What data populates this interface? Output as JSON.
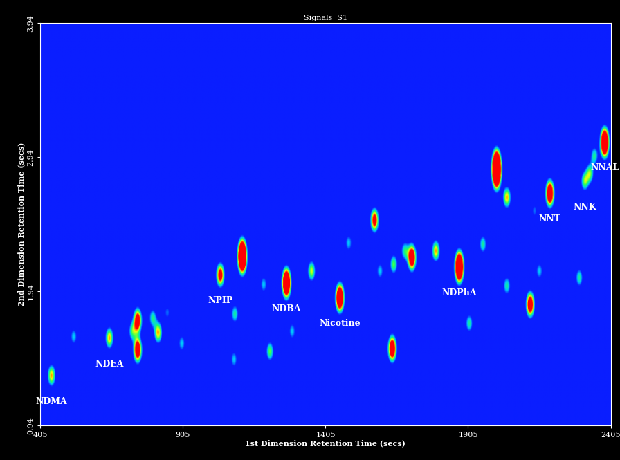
{
  "chart_data": {
    "type": "heatmap",
    "title": "Signals  S1",
    "x_label": "1st Dimension Retention Time (secs)",
    "y_label": "2nd Dimension Retention Time (secs)",
    "xlim": [
      405,
      2405
    ],
    "xticks": [
      405,
      905,
      1405,
      1905,
      2405
    ],
    "ylim": [
      0.94,
      3.94
    ],
    "yticks": [
      0.94,
      1.94,
      2.94,
      3.94
    ],
    "grid": false,
    "peaks": [
      {
        "x": 444,
        "y": 1.31,
        "intensity": 0.9,
        "name": "NDMA"
      },
      {
        "x": 522,
        "y": 1.6,
        "intensity": 0.5
      },
      {
        "x": 647,
        "y": 1.59,
        "intensity": 0.9,
        "name": "NDEA"
      },
      {
        "x": 727,
        "y": 1.64,
        "intensity": 0.6
      },
      {
        "x": 746,
        "y": 1.5,
        "intensity": 1.4
      },
      {
        "x": 746,
        "y": 1.72,
        "intensity": 1.3
      },
      {
        "x": 799,
        "y": 1.74,
        "intensity": 0.6
      },
      {
        "x": 818,
        "y": 1.63,
        "intensity": 0.9
      },
      {
        "x": 850,
        "y": 1.78,
        "intensity": 0.4
      },
      {
        "x": 901,
        "y": 1.55,
        "intensity": 0.5
      },
      {
        "x": 1036,
        "y": 2.06,
        "intensity": 1.2,
        "name": "NPIP"
      },
      {
        "x": 1113,
        "y": 2.2,
        "intensity": 2.5
      },
      {
        "x": 1087,
        "y": 1.77,
        "intensity": 0.6
      },
      {
        "x": 1084,
        "y": 1.43,
        "intensity": 0.5
      },
      {
        "x": 1188,
        "y": 1.99,
        "intensity": 0.5
      },
      {
        "x": 1210,
        "y": 1.49,
        "intensity": 0.7
      },
      {
        "x": 1268,
        "y": 2.0,
        "intensity": 2.0,
        "name": "NDBA"
      },
      {
        "x": 1288,
        "y": 1.64,
        "intensity": 0.5
      },
      {
        "x": 1356,
        "y": 2.09,
        "intensity": 0.8
      },
      {
        "x": 1455,
        "y": 1.89,
        "intensity": 1.8,
        "name": "Nicotine"
      },
      {
        "x": 1486,
        "y": 2.3,
        "intensity": 0.5
      },
      {
        "x": 1577,
        "y": 2.47,
        "intensity": 1.2
      },
      {
        "x": 1596,
        "y": 2.09,
        "intensity": 0.5
      },
      {
        "x": 1639,
        "y": 1.51,
        "intensity": 1.5
      },
      {
        "x": 1644,
        "y": 2.14,
        "intensity": 0.7
      },
      {
        "x": 1683,
        "y": 2.24,
        "intensity": 0.6
      },
      {
        "x": 1708,
        "y": 2.19,
        "intensity": 1.5
      },
      {
        "x": 1792,
        "y": 2.24,
        "intensity": 0.9
      },
      {
        "x": 1874,
        "y": 2.12,
        "intensity": 2.2,
        "name": "NDPhA"
      },
      {
        "x": 1909,
        "y": 1.7,
        "intensity": 0.6
      },
      {
        "x": 1957,
        "y": 2.29,
        "intensity": 0.6
      },
      {
        "x": 2005,
        "y": 2.85,
        "intensity": 3.0
      },
      {
        "x": 2041,
        "y": 2.64,
        "intensity": 0.9
      },
      {
        "x": 2041,
        "y": 1.98,
        "intensity": 0.6
      },
      {
        "x": 2123,
        "y": 1.84,
        "intensity": 1.4
      },
      {
        "x": 2138,
        "y": 2.54,
        "intensity": 0.4
      },
      {
        "x": 2155,
        "y": 2.09,
        "intensity": 0.5
      },
      {
        "x": 2192,
        "y": 2.67,
        "intensity": 1.6,
        "name": "NNT"
      },
      {
        "x": 2295,
        "y": 2.04,
        "intensity": 0.6
      },
      {
        "x": 2314,
        "y": 2.76,
        "intensity": 0.7,
        "name": "NNK"
      },
      {
        "x": 2332,
        "y": 2.82,
        "intensity": 0.7
      },
      {
        "x": 2348,
        "y": 2.95,
        "intensity": 0.6
      },
      {
        "x": 2384,
        "y": 3.05,
        "intensity": 2.0,
        "name": "NNAL"
      }
    ]
  }
}
